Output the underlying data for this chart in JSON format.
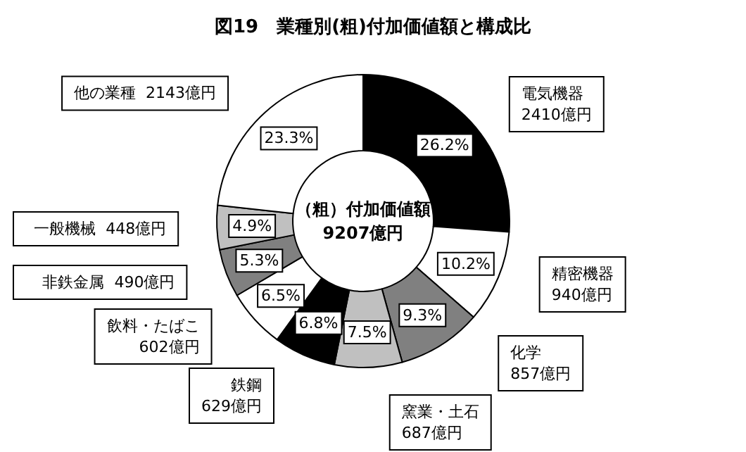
{
  "chart_data": {
    "type": "donut",
    "title": "図19　業種別(粗)付加価値額と構成比",
    "categories": [
      "電気機器",
      "精密機器",
      "化学",
      "窯業・土石",
      "鉄鋼",
      "飲料・たばこ",
      "非鉄金属",
      "一般機械",
      "他の業種"
    ],
    "values": [
      2410,
      940,
      857,
      687,
      629,
      602,
      490,
      448,
      2143
    ],
    "value_labels": [
      "2410億円",
      "940億円",
      "857億円",
      "687億円",
      "629億円",
      "602億円",
      "490億円",
      "448億円",
      "2143億円"
    ],
    "colors": [
      "#000000",
      "#ffffff",
      "#808080",
      "#c0c0c0",
      "#000000",
      "#ffffff",
      "#808080",
      "#c0c0c0",
      "#ffffff"
    ],
    "annotations": [
      "（粗）付加価値額\n9207億円",
      {
        "text": "26.2%",
        "x": "電気機器"
      },
      {
        "text": "10.2%",
        "x": "精密機器"
      },
      {
        "text": "9.3%",
        "x": "化学"
      },
      {
        "text": "7.5%",
        "x": "窯業・土石"
      },
      {
        "text": "6.8%",
        "x": "鉄鋼"
      },
      {
        "text": "6.5%",
        "x": "飲料・たばこ"
      },
      {
        "text": "5.3%",
        "x": "非鉄金属"
      },
      {
        "text": "4.9%",
        "x": "一般機械"
      },
      {
        "text": "23.3%",
        "x": "他の業種"
      }
    ],
    "legend": false
  }
}
